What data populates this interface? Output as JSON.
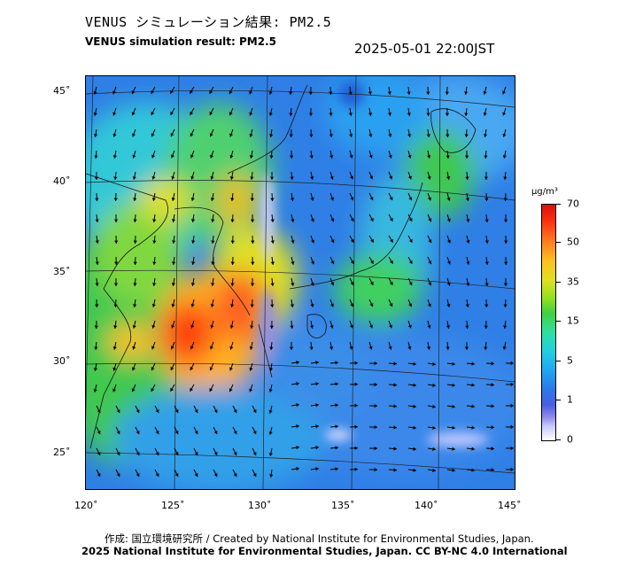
{
  "header": {
    "title_jp": "VENUS シミュレーション結果: PM2.5",
    "title_en": "VENUS simulation result: PM2.5",
    "datetime": "2025-05-01 22:00JST"
  },
  "map": {
    "lat_labels": [
      "45˚",
      "40˚",
      "35˚",
      "30˚",
      "25˚"
    ],
    "lon_labels": [
      "120˚",
      "125˚",
      "130˚",
      "135˚",
      "140˚",
      "145˚"
    ],
    "field": "PM2.5 concentration with surface wind vectors"
  },
  "colorbar": {
    "unit": "μg/m³",
    "ticks": [
      "70",
      "50",
      "35",
      "15",
      "5",
      "1",
      "0"
    ],
    "colors": [
      "#ffffff",
      "#8a8ae8",
      "#2a7ae8",
      "#20d0e0",
      "#40d040",
      "#e0e020",
      "#ff8020",
      "#d81010"
    ]
  },
  "footer": {
    "credit_line1": "作成: 国立環境研究所 / Created by National Institute for Environmental Studies, Japan.",
    "credit_line2": "2025 National Institute for Environmental Studies, Japan. CC BY-NC 4.0 International"
  }
}
